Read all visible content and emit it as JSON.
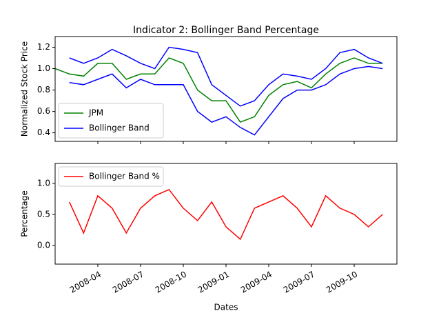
{
  "chart_data": [
    {
      "type": "line",
      "title": "Indicator 2: Bollinger Band Percentage",
      "ylabel": "Normalized Stock Price",
      "x": [
        "2008-01",
        "2008-02",
        "2008-03",
        "2008-04",
        "2008-05",
        "2008-06",
        "2008-07",
        "2008-08",
        "2008-09",
        "2008-10",
        "2008-11",
        "2008-12",
        "2009-01",
        "2009-02",
        "2009-03",
        "2009-04",
        "2009-05",
        "2009-06",
        "2009-07",
        "2009-08",
        "2009-09",
        "2009-10",
        "2009-11",
        "2009-12"
      ],
      "series": [
        {
          "name": "JPM",
          "color": "#008000",
          "values": [
            1.0,
            0.95,
            0.93,
            1.05,
            1.05,
            0.9,
            0.95,
            0.95,
            1.1,
            1.05,
            0.8,
            0.7,
            0.7,
            0.5,
            0.55,
            0.75,
            0.85,
            0.88,
            0.82,
            0.95,
            1.05,
            1.1,
            1.05,
            1.05
          ]
        },
        {
          "name": "Bollinger Band",
          "color": "#0000ff",
          "upper": [
            null,
            1.1,
            1.05,
            1.1,
            1.18,
            1.12,
            1.05,
            1.0,
            1.2,
            1.18,
            1.15,
            0.85,
            0.75,
            0.65,
            0.7,
            0.85,
            0.95,
            0.93,
            0.9,
            1.0,
            1.15,
            1.18,
            1.1,
            1.05
          ],
          "lower": [
            null,
            0.87,
            0.85,
            0.9,
            0.95,
            0.82,
            0.9,
            0.85,
            0.85,
            0.85,
            0.6,
            0.5,
            0.55,
            0.45,
            0.38,
            0.55,
            0.72,
            0.8,
            0.8,
            0.85,
            0.95,
            1.0,
            1.02,
            1.0
          ]
        }
      ],
      "xlim": [
        "2008-01",
        "2010-01"
      ],
      "ylim": [
        0.32,
        1.3
      ],
      "yticks": [
        0.4,
        0.6,
        0.8,
        {
          "value": 1,
          "label": "1.0"
        },
        1.2
      ],
      "legend": "lower left"
    },
    {
      "type": "line",
      "xlabel": "Dates",
      "ylabel": "Percentage",
      "x": [
        "2008-01",
        "2008-02",
        "2008-03",
        "2008-04",
        "2008-05",
        "2008-06",
        "2008-07",
        "2008-08",
        "2008-09",
        "2008-10",
        "2008-11",
        "2008-12",
        "2009-01",
        "2009-02",
        "2009-03",
        "2009-04",
        "2009-05",
        "2009-06",
        "2009-07",
        "2009-08",
        "2009-09",
        "2009-10",
        "2009-11",
        "2009-12"
      ],
      "series": [
        {
          "name": "Bollinger Band %",
          "color": "#ff0000",
          "values": [
            null,
            0.7,
            0.2,
            0.8,
            0.6,
            0.2,
            0.6,
            0.8,
            0.9,
            0.6,
            0.4,
            0.7,
            0.3,
            0.1,
            0.6,
            0.7,
            0.8,
            0.6,
            0.3,
            0.8,
            0.6,
            0.5,
            0.3,
            0.5
          ]
        }
      ],
      "xlim": [
        "2008-01",
        "2010-01"
      ],
      "ylim": [
        -0.3,
        1.32
      ],
      "xticks": [
        "2008-04",
        "2008-07",
        "2008-10",
        "2009-01",
        "2009-04",
        "2009-07",
        "2009-10"
      ],
      "yticks": [
        {
          "value": 0,
          "label": "0.0"
        },
        0.5,
        {
          "value": 1,
          "label": "1.0"
        }
      ],
      "legend": "upper left"
    }
  ]
}
